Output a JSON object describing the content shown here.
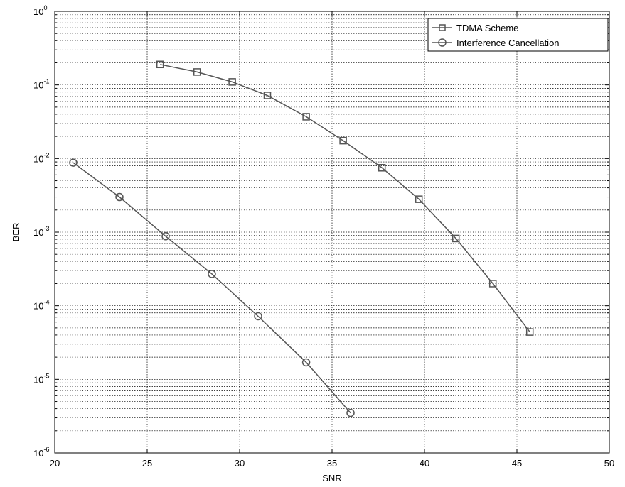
{
  "chart_data": {
    "type": "line",
    "xlabel": "SNR",
    "ylabel": "BER",
    "xlim": [
      20,
      50
    ],
    "ylim": [
      1e-06,
      1
    ],
    "yscale": "log",
    "grid": true,
    "legend_position": "top-right",
    "x_ticks": [
      "20",
      "25",
      "30",
      "35",
      "40",
      "45",
      "50"
    ],
    "y_ticks": [
      {
        "base": "10",
        "exp": "-6"
      },
      {
        "base": "10",
        "exp": "-5"
      },
      {
        "base": "10",
        "exp": "-4"
      },
      {
        "base": "10",
        "exp": "-3"
      },
      {
        "base": "10",
        "exp": "-2"
      },
      {
        "base": "10",
        "exp": "-1"
      },
      {
        "base": "10",
        "exp": "0"
      }
    ],
    "series": [
      {
        "name": "TDMA Scheme",
        "marker": "square",
        "color": "#555555",
        "x": [
          25.7,
          27.7,
          29.6,
          31.5,
          33.6,
          35.6,
          37.7,
          39.7,
          41.7,
          43.7,
          45.7
        ],
        "y": [
          0.19,
          0.15,
          0.11,
          0.072,
          0.037,
          0.0175,
          0.0075,
          0.0028,
          0.00082,
          0.0002,
          4.4e-05
        ]
      },
      {
        "name": "Interference Cancellation",
        "marker": "circle",
        "color": "#555555",
        "x": [
          21.0,
          23.5,
          26.0,
          28.5,
          31.0,
          33.6,
          36.0
        ],
        "y": [
          0.0088,
          0.003,
          0.00088,
          0.00027,
          7.2e-05,
          1.7e-05,
          3.5e-06
        ]
      }
    ]
  }
}
